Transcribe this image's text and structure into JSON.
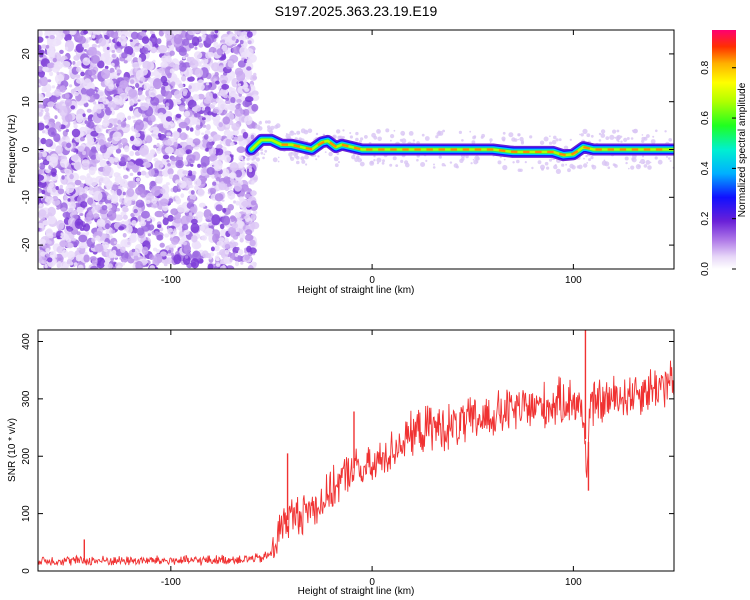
{
  "title": "S197.2025.363.23.19.E19",
  "chart_data": [
    {
      "type": "heatmap",
      "title": "S197.2025.363.23.19.E19",
      "xlabel": "Height of straight line (km)",
      "ylabel": "Frequency (Hz)",
      "xlim": [
        -166,
        150
      ],
      "ylim": [
        -25,
        25
      ],
      "x_ticks": [
        -100,
        0,
        100
      ],
      "x_tick_labels": [
        "-100",
        "0",
        "100"
      ],
      "y_ticks": [
        -20,
        -10,
        0,
        10,
        20
      ],
      "y_tick_labels": [
        "-20",
        "-10",
        "0",
        "10",
        "20"
      ],
      "noise_region_x": [
        -166,
        -58
      ],
      "ridge": {
        "description": "narrow high-amplitude band near 0 Hz",
        "x": [
          -60,
          -55,
          -50,
          -45,
          -40,
          -35,
          -30,
          -25,
          -22,
          -18,
          -15,
          -10,
          -5,
          0,
          10,
          20,
          30,
          40,
          50,
          60,
          70,
          80,
          90,
          95,
          100,
          105,
          110,
          120,
          130,
          140,
          150
        ],
        "freq": [
          0,
          2,
          2,
          1,
          1,
          0.5,
          0,
          1.5,
          1.8,
          0.5,
          1,
          0.5,
          0,
          0,
          0,
          0,
          0,
          0,
          0,
          0,
          -0.5,
          -0.5,
          -0.5,
          -1.2,
          -1,
          0.5,
          0,
          0,
          0,
          0,
          0
        ]
      },
      "colorbar": {
        "label": "Normalized spectral amplitude",
        "range": [
          0,
          0.95
        ],
        "ticks": [
          0.0,
          0.2,
          0.4,
          0.6,
          0.8
        ],
        "tick_labels": [
          "0.0",
          "0.2",
          "0.4",
          "0.6",
          "0.8"
        ]
      }
    },
    {
      "type": "line",
      "xlabel": "Height of straight line (km)",
      "ylabel": "SNR (10 * v/v)",
      "xlim": [
        -166,
        150
      ],
      "ylim": [
        0,
        420
      ],
      "x_ticks": [
        -100,
        0,
        100
      ],
      "x_tick_labels": [
        "-100",
        "0",
        "100"
      ],
      "y_ticks": [
        0,
        100,
        200,
        300,
        400
      ],
      "y_tick_labels": [
        "0",
        "100",
        "200",
        "300",
        "400"
      ],
      "series": [
        {
          "name": "SNR",
          "color": "#f03232",
          "x": [
            -166,
            -150,
            -130,
            -110,
            -90,
            -70,
            -55,
            -50,
            -45,
            -40,
            -35,
            -30,
            -25,
            -20,
            -15,
            -10,
            -5,
            0,
            10,
            20,
            30,
            40,
            50,
            60,
            70,
            80,
            90,
            100,
            104,
            106,
            107,
            108,
            110,
            120,
            130,
            140,
            150
          ],
          "y": [
            18,
            18,
            18,
            18,
            18,
            20,
            22,
            30,
            80,
            95,
            100,
            110,
            120,
            140,
            160,
            180,
            175,
            180,
            210,
            240,
            250,
            250,
            262,
            270,
            280,
            285,
            290,
            300,
            280,
            230,
            170,
            280,
            290,
            300,
            310,
            320,
            330
          ]
        }
      ],
      "annotations": [
        {
          "x": -143,
          "y": 55,
          "note": "spike"
        },
        {
          "x": -42,
          "y": 205,
          "note": "spike"
        },
        {
          "x": -9,
          "y": 278,
          "note": "spike"
        },
        {
          "x": 106,
          "y": 430,
          "note": "spike"
        },
        {
          "x": 107.5,
          "y": 140,
          "note": "dip"
        }
      ]
    }
  ]
}
